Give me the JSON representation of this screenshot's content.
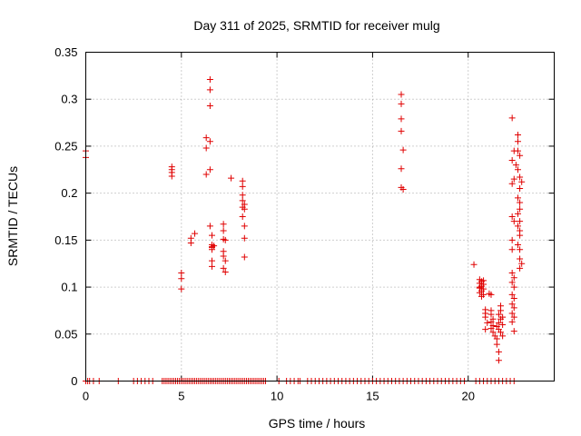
{
  "chart_data": {
    "type": "scatter",
    "title": "Day 311 of 2025, SRMTID for receiver mulg",
    "xlabel": "GPS time / hours",
    "ylabel": "SRMTID / TECUs",
    "xlim": [
      0,
      24.5
    ],
    "ylim": [
      0,
      0.35
    ],
    "xticks": [
      0,
      5,
      10,
      15,
      20
    ],
    "xtick_labels": [
      "0",
      "5",
      "10",
      "15",
      "20"
    ],
    "yticks": [
      0,
      0.05,
      0.1,
      0.15,
      0.2,
      0.25,
      0.3,
      0.35
    ],
    "ytick_labels": [
      "0",
      "0.05",
      "0.1",
      "0.15",
      "0.2",
      "0.25",
      "0.3",
      "0.35"
    ],
    "grid": true,
    "marker": "+",
    "color": "#e00000",
    "series": [
      {
        "name": "SRMTID",
        "points": [
          [
            0.0,
            0.245
          ],
          [
            0.0,
            0.238
          ],
          [
            4.5,
            0.228
          ],
          [
            4.5,
            0.225
          ],
          [
            4.5,
            0.222
          ],
          [
            4.5,
            0.218
          ],
          [
            5.0,
            0.115
          ],
          [
            5.0,
            0.109
          ],
          [
            5.0,
            0.098
          ],
          [
            5.5,
            0.152
          ],
          [
            5.5,
            0.147
          ],
          [
            5.7,
            0.157
          ],
          [
            6.3,
            0.259
          ],
          [
            6.3,
            0.248
          ],
          [
            6.3,
            0.22
          ],
          [
            6.5,
            0.321
          ],
          [
            6.5,
            0.31
          ],
          [
            6.5,
            0.293
          ],
          [
            6.5,
            0.255
          ],
          [
            6.5,
            0.225
          ],
          [
            6.5,
            0.165
          ],
          [
            6.6,
            0.155
          ],
          [
            6.6,
            0.145
          ],
          [
            6.6,
            0.142
          ],
          [
            6.6,
            0.143
          ],
          [
            6.7,
            0.144
          ],
          [
            6.6,
            0.14
          ],
          [
            6.6,
            0.128
          ],
          [
            6.6,
            0.122
          ],
          [
            7.2,
            0.167
          ],
          [
            7.2,
            0.16
          ],
          [
            7.2,
            0.151
          ],
          [
            7.3,
            0.15
          ],
          [
            7.2,
            0.138
          ],
          [
            7.2,
            0.133
          ],
          [
            7.3,
            0.128
          ],
          [
            7.2,
            0.12
          ],
          [
            7.3,
            0.116
          ],
          [
            7.6,
            0.216
          ],
          [
            8.2,
            0.213
          ],
          [
            8.2,
            0.207
          ],
          [
            8.2,
            0.198
          ],
          [
            8.2,
            0.192
          ],
          [
            8.3,
            0.188
          ],
          [
            8.2,
            0.185
          ],
          [
            8.3,
            0.183
          ],
          [
            8.2,
            0.175
          ],
          [
            8.3,
            0.165
          ],
          [
            8.3,
            0.152
          ],
          [
            8.3,
            0.132
          ],
          [
            16.5,
            0.305
          ],
          [
            16.5,
            0.295
          ],
          [
            16.5,
            0.279
          ],
          [
            16.5,
            0.266
          ],
          [
            16.6,
            0.246
          ],
          [
            16.5,
            0.226
          ],
          [
            16.5,
            0.206
          ],
          [
            16.6,
            0.204
          ],
          [
            20.3,
            0.124
          ],
          [
            20.6,
            0.108
          ],
          [
            20.7,
            0.106
          ],
          [
            20.6,
            0.104
          ],
          [
            20.8,
            0.103
          ],
          [
            20.7,
            0.101
          ],
          [
            20.6,
            0.099
          ],
          [
            20.8,
            0.098
          ],
          [
            20.7,
            0.096
          ],
          [
            20.6,
            0.094
          ],
          [
            20.8,
            0.092
          ],
          [
            20.7,
            0.09
          ],
          [
            20.6,
            0.1
          ],
          [
            20.8,
            0.107
          ],
          [
            20.9,
            0.076
          ],
          [
            20.9,
            0.072
          ],
          [
            20.9,
            0.068
          ],
          [
            21.0,
            0.062
          ],
          [
            20.9,
            0.055
          ],
          [
            21.1,
            0.093
          ],
          [
            21.2,
            0.092
          ],
          [
            21.2,
            0.075
          ],
          [
            21.2,
            0.071
          ],
          [
            21.3,
            0.066
          ],
          [
            21.2,
            0.063
          ],
          [
            21.3,
            0.059
          ],
          [
            21.2,
            0.056
          ],
          [
            21.3,
            0.052
          ],
          [
            21.4,
            0.048
          ],
          [
            21.5,
            0.045
          ],
          [
            21.5,
            0.039
          ],
          [
            21.6,
            0.031
          ],
          [
            21.6,
            0.022
          ],
          [
            21.5,
            0.058
          ],
          [
            21.6,
            0.062
          ],
          [
            21.7,
            0.066
          ],
          [
            21.6,
            0.071
          ],
          [
            21.7,
            0.075
          ],
          [
            21.7,
            0.08
          ],
          [
            21.8,
            0.068
          ],
          [
            21.8,
            0.06
          ],
          [
            21.7,
            0.052
          ],
          [
            21.8,
            0.048
          ],
          [
            21.6,
            0.055
          ],
          [
            22.3,
            0.28
          ],
          [
            22.4,
            0.245
          ],
          [
            22.3,
            0.235
          ],
          [
            22.5,
            0.23
          ],
          [
            22.4,
            0.215
          ],
          [
            22.3,
            0.21
          ],
          [
            22.3,
            0.175
          ],
          [
            22.4,
            0.17
          ],
          [
            22.3,
            0.15
          ],
          [
            22.3,
            0.14
          ],
          [
            22.3,
            0.115
          ],
          [
            22.4,
            0.11
          ],
          [
            22.3,
            0.105
          ],
          [
            22.4,
            0.1
          ],
          [
            22.3,
            0.092
          ],
          [
            22.4,
            0.088
          ],
          [
            22.3,
            0.082
          ],
          [
            22.4,
            0.078
          ],
          [
            22.3,
            0.072
          ],
          [
            22.4,
            0.068
          ],
          [
            22.3,
            0.063
          ],
          [
            22.4,
            0.053
          ],
          [
            22.6,
            0.262
          ],
          [
            22.6,
            0.255
          ],
          [
            22.6,
            0.245
          ],
          [
            22.7,
            0.24
          ],
          [
            22.6,
            0.225
          ],
          [
            22.7,
            0.217
          ],
          [
            22.7,
            0.205
          ],
          [
            22.6,
            0.195
          ],
          [
            22.7,
            0.19
          ],
          [
            22.7,
            0.183
          ],
          [
            22.6,
            0.178
          ],
          [
            22.7,
            0.17
          ],
          [
            22.6,
            0.165
          ],
          [
            22.7,
            0.16
          ],
          [
            22.7,
            0.155
          ],
          [
            22.6,
            0.145
          ],
          [
            22.7,
            0.14
          ],
          [
            22.7,
            0.13
          ],
          [
            22.8,
            0.125
          ],
          [
            22.7,
            0.12
          ],
          [
            22.8,
            0.212
          ]
        ],
        "zero_times": [
          0.0,
          0.1,
          0.2,
          0.4,
          0.7,
          1.7,
          2.5,
          2.7,
          2.9,
          3.1,
          3.3,
          3.5,
          4.0,
          4.1,
          4.2,
          4.3,
          4.4,
          4.5,
          4.6,
          4.7,
          4.8,
          4.9,
          5.0,
          5.1,
          5.2,
          5.3,
          5.4,
          5.5,
          5.6,
          5.7,
          5.8,
          5.9,
          6.0,
          6.1,
          6.2,
          6.3,
          6.4,
          6.5,
          6.6,
          6.7,
          6.8,
          6.9,
          7.0,
          7.1,
          7.2,
          7.3,
          7.4,
          7.5,
          7.6,
          7.7,
          7.8,
          7.9,
          8.0,
          8.1,
          8.2,
          8.3,
          8.4,
          8.5,
          8.6,
          8.7,
          8.8,
          8.9,
          9.0,
          9.1,
          9.2,
          9.3,
          9.4,
          10.1,
          10.5,
          10.7,
          10.9,
          11.1,
          11.2,
          11.6,
          11.8,
          12.0,
          12.2,
          12.4,
          12.6,
          12.8,
          13.0,
          13.2,
          13.4,
          13.6,
          13.8,
          14.0,
          14.2,
          14.4,
          14.6,
          14.8,
          15.0,
          15.2,
          15.4,
          15.6,
          15.8,
          16.0,
          16.2,
          16.4,
          16.6,
          16.8,
          17.0,
          17.2,
          17.4,
          17.6,
          17.8,
          18.0,
          18.2,
          18.4,
          18.6,
          18.8,
          19.0,
          19.2,
          19.4,
          19.6,
          19.8,
          20.4,
          20.6,
          20.8,
          21.0,
          21.2,
          21.4,
          21.6,
          21.8,
          22.0,
          22.2,
          22.4
        ]
      }
    ]
  }
}
